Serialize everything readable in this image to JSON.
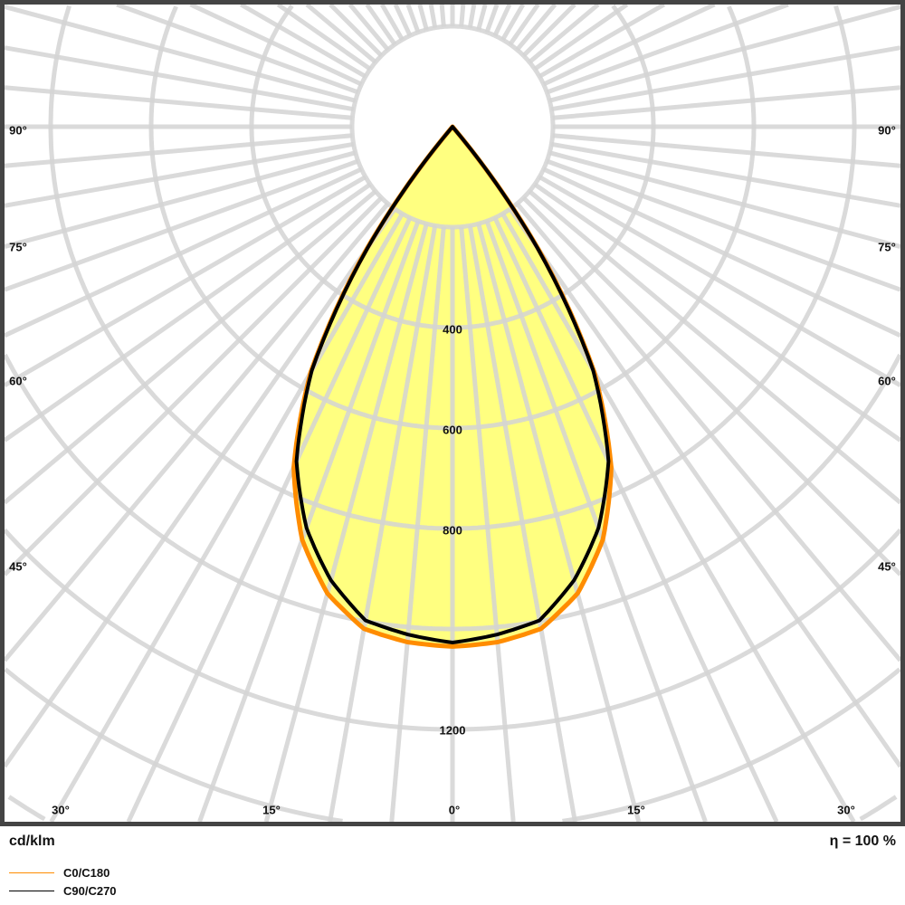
{
  "chart_data": {
    "type": "polar",
    "unit_label": "cd/klm",
    "efficiency_label": "η = 100 %",
    "radial_ticks": [
      400,
      600,
      800,
      1200
    ],
    "radial_grid_step": 200,
    "angle_grid_step_deg": 5,
    "angle_labels_bottom": [
      "30°",
      "15°",
      "0°",
      "15°",
      "30°"
    ],
    "angle_labels_side": [
      "90°",
      "75°",
      "60°",
      "45°"
    ],
    "angles_deg": [
      0,
      5,
      10,
      15,
      20,
      25,
      30,
      35,
      38,
      40
    ],
    "series": [
      {
        "name": "C0/C180",
        "color": "#ff8c00",
        "values": [
          1035,
          1030,
          1015,
          962,
          875,
          748,
          565,
          300,
          120,
          0
        ]
      },
      {
        "name": "C90/C270",
        "color": "#000000",
        "values": [
          1027,
          1015,
          998,
          935,
          850,
          735,
          560,
          295,
          118,
          0
        ]
      }
    ],
    "fill_color": "#ffff80",
    "grid_color": "#d3d3d3",
    "frame_color": "#444444"
  }
}
